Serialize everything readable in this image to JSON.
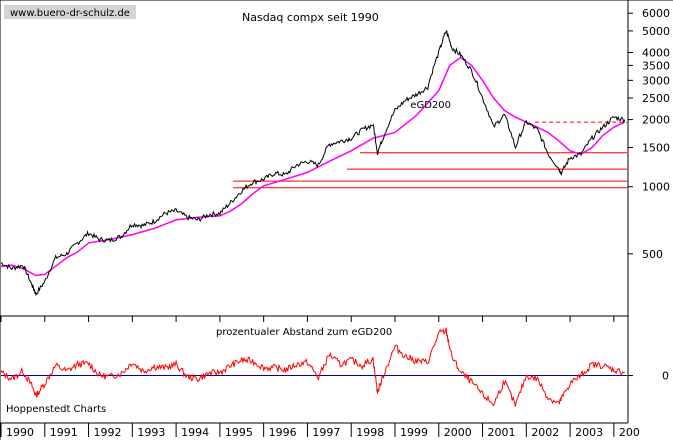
{
  "chart_data": [
    {
      "type": "line",
      "title": "Nasdaq compx seit 1990",
      "y_scale": "log",
      "ylim": [
        280,
        6600
      ],
      "y_ticks": [
        500,
        1000,
        1500,
        2000,
        2500,
        3000,
        3500,
        4000,
        5000,
        6000
      ],
      "x_ticks": [
        "1990",
        "1991",
        "1992",
        "1993",
        "1994",
        "1995",
        "1996",
        "1997",
        "1998",
        "1999",
        "2000",
        "2001",
        "2002",
        "2003",
        "200"
      ],
      "grid": false,
      "series": [
        {
          "name": "",
          "color": "#000000",
          "x": [
            1990.0,
            1990.25,
            1990.5,
            1990.7,
            1990.8,
            1991.0,
            1991.25,
            1991.5,
            1991.75,
            1992.0,
            1992.25,
            1992.5,
            1992.75,
            1993.0,
            1993.25,
            1993.5,
            1993.75,
            1994.0,
            1994.25,
            1994.5,
            1994.75,
            1995.0,
            1995.25,
            1995.5,
            1995.75,
            1996.0,
            1996.25,
            1996.5,
            1996.75,
            1997.0,
            1997.25,
            1997.5,
            1997.75,
            1998.0,
            1998.25,
            1998.5,
            1998.6,
            1998.75,
            1999.0,
            1999.25,
            1999.5,
            1999.75,
            2000.0,
            2000.17,
            2000.3,
            2000.5,
            2000.75,
            2001.0,
            2001.25,
            2001.5,
            2001.75,
            2002.0,
            2002.25,
            2002.5,
            2002.75,
            2002.8,
            2003.0,
            2003.25,
            2003.5,
            2003.75,
            2004.0,
            2004.25
          ],
          "values": [
            455,
            430,
            445,
            365,
            330,
            375,
            480,
            500,
            560,
            620,
            580,
            575,
            600,
            680,
            670,
            700,
            760,
            780,
            730,
            710,
            750,
            760,
            850,
            960,
            1050,
            1080,
            1150,
            1130,
            1250,
            1300,
            1250,
            1550,
            1600,
            1650,
            1800,
            1900,
            1420,
            1700,
            2200,
            2450,
            2600,
            2800,
            4000,
            5000,
            4200,
            3900,
            3300,
            2500,
            1850,
            2100,
            1500,
            1950,
            1800,
            1400,
            1200,
            1150,
            1350,
            1400,
            1650,
            1850,
            2050,
            2000
          ]
        },
        {
          "name": "eGD200",
          "color": "#ff00ff",
          "x": [
            1990.0,
            1990.25,
            1990.5,
            1990.8,
            1991.0,
            1991.25,
            1991.5,
            1991.75,
            1992.0,
            1992.5,
            1993.0,
            1993.5,
            1994.0,
            1994.5,
            1995.0,
            1995.25,
            1995.5,
            1995.75,
            1996.0,
            1996.5,
            1997.0,
            1997.5,
            1998.0,
            1998.5,
            1998.75,
            1999.0,
            1999.5,
            2000.0,
            2000.25,
            2000.5,
            2000.75,
            2001.0,
            2001.25,
            2001.5,
            2001.75,
            2002.0,
            2002.25,
            2002.5,
            2002.75,
            2003.0,
            2003.25,
            2003.5,
            2003.75,
            2004.0,
            2004.25
          ],
          "values": [
            440,
            445,
            430,
            400,
            405,
            440,
            480,
            510,
            560,
            580,
            610,
            650,
            710,
            730,
            740,
            780,
            840,
            930,
            1010,
            1080,
            1160,
            1300,
            1450,
            1650,
            1700,
            1750,
            2100,
            2700,
            3500,
            3800,
            3500,
            3000,
            2500,
            2200,
            2050,
            1950,
            1850,
            1750,
            1600,
            1450,
            1400,
            1500,
            1700,
            1850,
            1950
          ]
        }
      ],
      "series_labels": [
        "eGD200"
      ],
      "horizontal_lines": [
        {
          "value": 1950,
          "color": "#ff0000",
          "style": "dashed",
          "from_x": 2002.2
        },
        {
          "value": 1420,
          "color": "#ff0000",
          "style": "solid",
          "from_x": 1998.2
        },
        {
          "value": 1200,
          "color": "#ff0000",
          "style": "solid",
          "from_x": 1997.9
        },
        {
          "value": 1060,
          "color": "#ff0000",
          "style": "solid",
          "from_x": 1995.3
        },
        {
          "value": 990,
          "color": "#ff0000",
          "style": "solid",
          "from_x": 1995.3
        }
      ]
    },
    {
      "type": "line",
      "title": "prozentualer Abstand zum eGD200",
      "ylim": [
        -40,
        50
      ],
      "y_ticks": [
        0
      ],
      "series": [
        {
          "name": "",
          "color": "#ff0000",
          "x": [
            1990.0,
            1990.25,
            1990.5,
            1990.7,
            1990.8,
            1991.0,
            1991.25,
            1991.5,
            1991.75,
            1992.0,
            1992.25,
            1992.5,
            1992.75,
            1993.0,
            1993.25,
            1993.5,
            1993.75,
            1994.0,
            1994.25,
            1994.5,
            1994.75,
            1995.0,
            1995.25,
            1995.5,
            1995.75,
            1996.0,
            1996.25,
            1996.5,
            1996.75,
            1997.0,
            1997.25,
            1997.5,
            1997.75,
            1998.0,
            1998.25,
            1998.5,
            1998.6,
            1998.75,
            1999.0,
            1999.25,
            1999.5,
            1999.75,
            2000.0,
            2000.17,
            2000.3,
            2000.5,
            2000.75,
            2001.0,
            2001.25,
            2001.5,
            2001.75,
            2002.0,
            2002.25,
            2002.5,
            2002.75,
            2002.8,
            2003.0,
            2003.25,
            2003.5,
            2003.75,
            2004.0,
            2004.25
          ],
          "values": [
            3,
            -3,
            4,
            -9,
            -18,
            -7,
            9,
            4,
            10,
            11,
            0,
            -1,
            2,
            12,
            4,
            8,
            7,
            10,
            -1,
            -3,
            2,
            3,
            9,
            14,
            13,
            7,
            7,
            5,
            10,
            12,
            -2,
            19,
            10,
            14,
            9,
            15,
            -15,
            2,
            26,
            17,
            13,
            12,
            38,
            40,
            17,
            3,
            -6,
            -17,
            -26,
            -5,
            -27,
            0,
            -3,
            -20,
            -25,
            -21,
            -7,
            0,
            10,
            9,
            5,
            3
          ]
        }
      ],
      "reference_lines": [
        {
          "value": 0,
          "color": "#0000aa"
        }
      ]
    }
  ],
  "labels": {
    "watermark": "www.buero-dr-schulz.de",
    "footer": "Hoppenstedt Charts"
  }
}
